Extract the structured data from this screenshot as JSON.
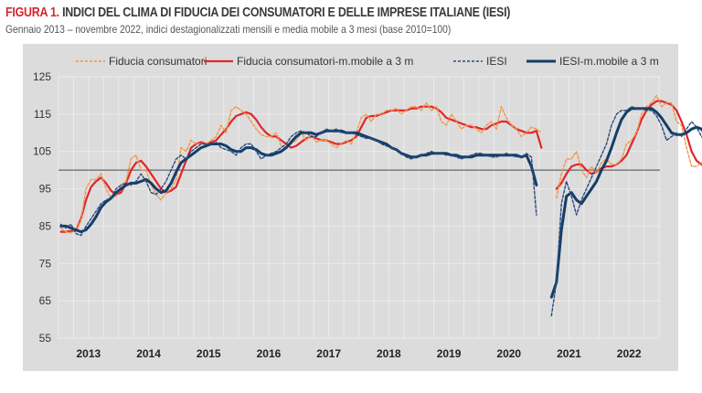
{
  "header": {
    "figure_label": "FIGURA 1.",
    "title": "INDICI DEL CLIMA DI FIDUCIA DEI CONSUMATORI E DELLE IMPRESE ITALIANE (IESI)",
    "subtitle": "Gennaio 2013 – novembre 2022, indici destagionalizzati mensili e media mobile a 3 mesi (base 2010=100)"
  },
  "colors": {
    "title_accent": "#d6262c",
    "consumer": "#f0964a",
    "consumer_ma": "#e0262b",
    "iesi": "#2b4a7e",
    "iesi_ma": "#143e66",
    "reference_line": "#666666",
    "panel_bg": "#dcdcdc",
    "grid": "#ececec"
  },
  "chart_data": {
    "type": "line",
    "title": "INDICI DEL CLIMA DI FIDUCIA DEI CONSUMATORI E DELLE IMPRESE ITALIANE (IESI)",
    "xlabel": "",
    "ylabel": "",
    "ylim": [
      55,
      125
    ],
    "yticks": [
      55,
      65,
      75,
      85,
      95,
      105,
      115,
      125
    ],
    "reference_line": 100,
    "grid": true,
    "legend_position": "top",
    "x_start": "2013-01",
    "x_end": "2022-11",
    "x_tick_labels": [
      "2013",
      "2014",
      "2015",
      "2016",
      "2017",
      "2018",
      "2019",
      "2020",
      "2021",
      "2022"
    ],
    "x_note": "monthly, values index 0 = Jan 2013; null = no data (Mar–Apr 2020)",
    "series": [
      {
        "name": "Fiducia consumatori",
        "style": "dashed",
        "values": [
          84.5,
          83.5,
          83.2,
          83.8,
          86.5,
          95,
          97.5,
          97.5,
          99,
          95,
          92.5,
          93,
          96,
          97,
          103,
          104,
          100,
          100,
          96,
          93.5,
          92,
          94,
          95,
          97.5,
          106,
          105,
          108,
          107,
          107,
          107,
          108,
          109,
          112,
          110,
          116,
          117,
          116,
          115,
          113,
          111,
          109.5,
          109,
          109,
          110,
          106.5,
          106,
          107,
          108,
          110,
          108,
          109.5,
          107.5,
          108,
          108,
          107,
          106,
          107,
          108,
          107,
          110,
          114,
          115,
          113,
          115,
          115,
          116,
          116,
          116.5,
          115,
          116,
          117,
          117,
          116,
          118,
          116,
          117,
          113,
          112,
          115,
          113,
          111,
          112,
          112,
          111,
          110,
          112,
          113,
          111,
          117,
          114,
          112,
          111,
          109,
          110,
          111.5,
          111,
          110,
          null,
          null,
          92.5,
          99,
          103,
          103,
          105,
          100,
          98,
          101,
          99,
          102,
          103,
          101.5,
          101.5,
          103,
          107,
          108,
          110,
          115,
          117,
          118,
          120,
          117,
          118,
          118,
          113,
          112,
          106,
          101,
          101,
          102,
          99,
          100,
          96,
          95,
          97,
          93,
          92,
          90.5,
          98
        ],
        "color": "#f0964a"
      },
      {
        "name": "Fiducia consumatori-m.mobile a 3 m",
        "style": "solid",
        "values": [
          83.5,
          83.5,
          83.7,
          83.8,
          87,
          92,
          95.5,
          97,
          98,
          96.5,
          94.5,
          93.5,
          94,
          96.5,
          100,
          102,
          102.5,
          101,
          99,
          97,
          95,
          94,
          94.5,
          95.5,
          99,
          102.5,
          106,
          107,
          107.5,
          107,
          107.5,
          108,
          109.5,
          111,
          113,
          114.5,
          115,
          115.5,
          115,
          113.5,
          111.5,
          110,
          109,
          109,
          108,
          107,
          106,
          106.5,
          107.5,
          108.5,
          109,
          108.5,
          108,
          108,
          107.5,
          107,
          107,
          107.5,
          108,
          109,
          111.5,
          114,
          114.5,
          114.5,
          115,
          115.5,
          116,
          116,
          116,
          116,
          116.5,
          116.5,
          117,
          117,
          117,
          116.5,
          115.5,
          114,
          113.5,
          113,
          112.5,
          112,
          111.5,
          111.5,
          111,
          111,
          112,
          112.5,
          113,
          113,
          112,
          111,
          110.5,
          110,
          110,
          110.5,
          106,
          null,
          null,
          95,
          96.5,
          99,
          101,
          101.5,
          101.5,
          100,
          99,
          99.5,
          100.5,
          101,
          101,
          101.5,
          102.5,
          104,
          107,
          110,
          113.5,
          116,
          117.5,
          118.5,
          118.5,
          118,
          117.5,
          116,
          113,
          109.5,
          105,
          102.5,
          101.5,
          100.5,
          99,
          98,
          96.5,
          95.5,
          95,
          94.5,
          94.5,
          null
        ],
        "color": "#e0262b"
      },
      {
        "name": "IESI",
        "style": "dashed",
        "values": [
          85.5,
          84.5,
          85.5,
          83,
          82.5,
          85,
          87,
          89,
          91,
          92,
          92.5,
          95,
          96,
          96.5,
          96,
          97,
          99,
          97,
          94,
          93.5,
          95,
          97,
          100,
          103,
          104,
          103,
          105,
          106,
          107,
          107,
          107,
          107.5,
          106,
          105.5,
          105,
          104,
          106,
          107,
          107,
          105,
          103,
          104,
          104.5,
          105,
          106,
          107,
          109,
          110,
          110.5,
          110,
          109,
          109,
          110,
          111,
          110.5,
          111,
          110,
          110,
          110,
          109.5,
          109,
          108.5,
          108.5,
          108,
          107,
          106.5,
          106,
          105.5,
          104.5,
          103.5,
          103,
          103.5,
          104,
          104.5,
          105,
          104.5,
          104.5,
          104,
          104,
          103.5,
          103,
          103.5,
          104,
          104.5,
          104.5,
          104,
          103.5,
          103.5,
          104,
          104.5,
          104,
          103.5,
          103.5,
          104.5,
          103.5,
          88,
          null,
          null,
          61,
          70,
          91,
          97,
          93,
          88,
          92,
          95,
          98,
          101,
          104,
          107,
          112,
          115,
          116,
          116,
          117,
          116.5,
          116.5,
          116,
          116,
          114.5,
          112,
          108,
          109,
          110,
          109,
          111,
          113,
          111.5,
          109,
          107,
          105,
          104.5,
          105,
          106
        ],
        "color": "#2b4a7e"
      },
      {
        "name": "IESI-m.mobile a 3 m",
        "style": "solid",
        "values": [
          85,
          85,
          84.5,
          84,
          83.5,
          84,
          85.5,
          87.5,
          90,
          91.5,
          92.5,
          94,
          95,
          96,
          96.5,
          96.5,
          97,
          97.5,
          96.5,
          95,
          94,
          94.5,
          96.5,
          99.5,
          102,
          103,
          104,
          105,
          106,
          106.5,
          107,
          107,
          107,
          106.5,
          105.5,
          105,
          105,
          106,
          106,
          105.5,
          104.5,
          104,
          104,
          104.5,
          105,
          106,
          107.5,
          109,
          110,
          110,
          110,
          109.5,
          110,
          110.5,
          110.5,
          110.5,
          110.5,
          110,
          110,
          110,
          109.5,
          109,
          108.5,
          108,
          107.5,
          107,
          106,
          105.5,
          104.5,
          104,
          103.5,
          103.5,
          104,
          104,
          104.5,
          104.5,
          104.5,
          104.5,
          104,
          104,
          103.5,
          103.5,
          103.5,
          104,
          104,
          104,
          104,
          104,
          104,
          104,
          104,
          104,
          103.5,
          104,
          101,
          96,
          null,
          null,
          66,
          70,
          84,
          93,
          94,
          92,
          91,
          93,
          95,
          97,
          100,
          102.5,
          106,
          110,
          113.5,
          115.5,
          116.5,
          116.5,
          116.5,
          116.5,
          116.5,
          115.5,
          114,
          112,
          110,
          109.5,
          109.5,
          110,
          111,
          111.5,
          111,
          109,
          107,
          105.5,
          105,
          105.5,
          null
        ],
        "color": "#143e66"
      }
    ]
  }
}
